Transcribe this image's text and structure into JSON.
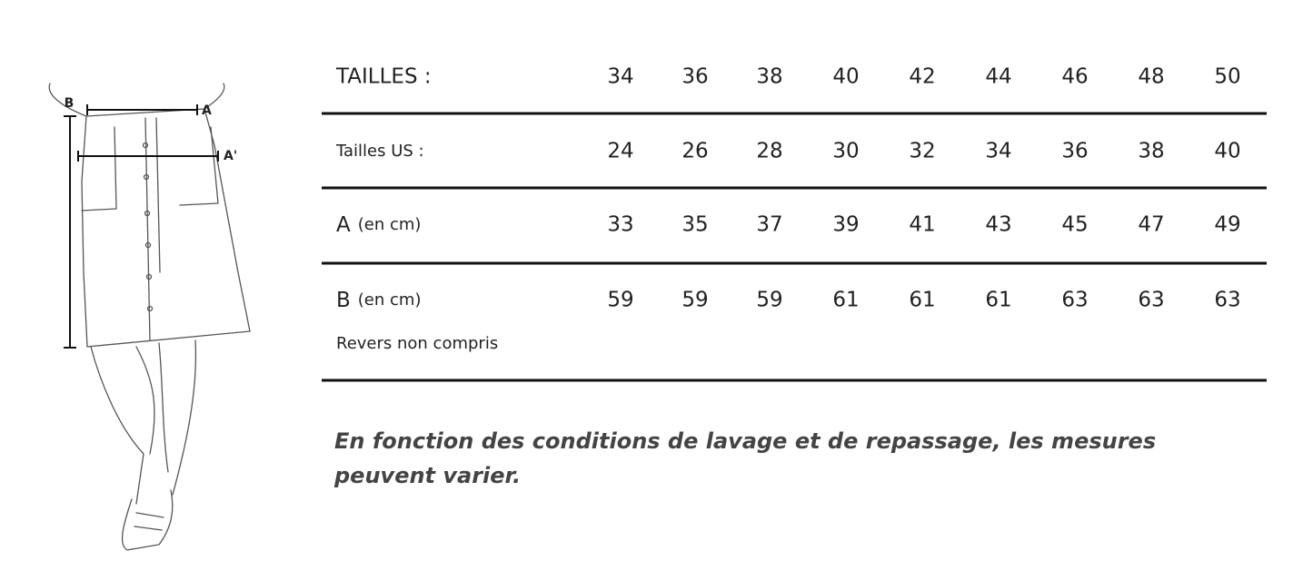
{
  "figure": {
    "labels": [
      "B",
      "A",
      "A'"
    ]
  },
  "table": {
    "header": {
      "label": "TAILLES :",
      "values": [
        34,
        36,
        38,
        40,
        42,
        44,
        46,
        48,
        50
      ]
    },
    "rows": [
      {
        "label": "Tailles US :",
        "values": [
          24,
          26,
          28,
          30,
          32,
          34,
          36,
          38,
          40
        ]
      },
      {
        "label": "A",
        "unit": "(en cm)",
        "values": [
          33,
          35,
          37,
          39,
          41,
          43,
          45,
          47,
          49
        ]
      },
      {
        "label": "B",
        "unit": "(en cm)",
        "note": "Revers non compris",
        "values": [
          59,
          59,
          59,
          61,
          61,
          61,
          63,
          63,
          63
        ]
      }
    ]
  },
  "footnote": [
    "En fonction des conditions de lavage et de repassage, les mesures",
    "peuvent varier."
  ]
}
